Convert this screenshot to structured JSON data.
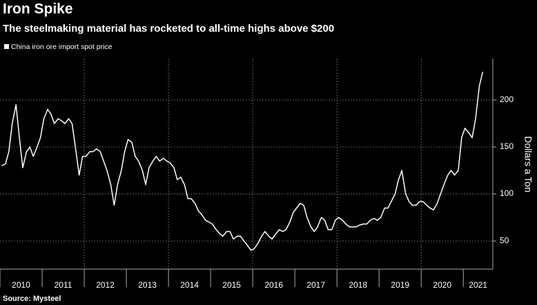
{
  "chart_data": {
    "type": "line",
    "title": "Iron Spike",
    "subtitle": "The steelmaking material has rocketed to all-time highs above $200",
    "y_label": "Dollars a Ton",
    "source": "Source: Mysteel",
    "x": [
      2010.04,
      2010.13,
      2010.21,
      2010.29,
      2010.38,
      2010.46,
      2010.54,
      2010.63,
      2010.71,
      2010.79,
      2010.88,
      2010.96,
      2011.04,
      2011.13,
      2011.21,
      2011.29,
      2011.38,
      2011.46,
      2011.54,
      2011.63,
      2011.71,
      2011.79,
      2011.88,
      2011.96,
      2012.04,
      2012.13,
      2012.21,
      2012.29,
      2012.38,
      2012.46,
      2012.54,
      2012.63,
      2012.71,
      2012.79,
      2012.88,
      2012.96,
      2013.04,
      2013.13,
      2013.21,
      2013.29,
      2013.38,
      2013.46,
      2013.54,
      2013.63,
      2013.71,
      2013.79,
      2013.88,
      2013.96,
      2014.04,
      2014.13,
      2014.21,
      2014.29,
      2014.38,
      2014.46,
      2014.54,
      2014.63,
      2014.71,
      2014.79,
      2014.88,
      2014.96,
      2015.04,
      2015.13,
      2015.21,
      2015.29,
      2015.38,
      2015.46,
      2015.54,
      2015.63,
      2015.71,
      2015.79,
      2015.88,
      2015.96,
      2016.04,
      2016.13,
      2016.21,
      2016.29,
      2016.38,
      2016.46,
      2016.54,
      2016.63,
      2016.71,
      2016.79,
      2016.88,
      2016.96,
      2017.04,
      2017.13,
      2017.21,
      2017.29,
      2017.38,
      2017.46,
      2017.54,
      2017.63,
      2017.71,
      2017.79,
      2017.88,
      2017.96,
      2018.04,
      2018.13,
      2018.21,
      2018.29,
      2018.38,
      2018.46,
      2018.54,
      2018.63,
      2018.71,
      2018.79,
      2018.88,
      2018.96,
      2019.04,
      2019.13,
      2019.21,
      2019.29,
      2019.38,
      2019.46,
      2019.54,
      2019.63,
      2019.71,
      2019.79,
      2019.88,
      2019.96,
      2020.04,
      2020.13,
      2020.21,
      2020.29,
      2020.38,
      2020.46,
      2020.54,
      2020.63,
      2020.71,
      2020.79,
      2020.88,
      2020.96,
      2021.04,
      2021.13,
      2021.21,
      2021.29,
      2021.38,
      2021.46
    ],
    "series": [
      {
        "name": "China iron ore import spot price",
        "color": "#ffffff",
        "values": [
          130,
          132,
          145,
          175,
          195,
          160,
          128,
          145,
          150,
          140,
          150,
          160,
          180,
          190,
          185,
          175,
          180,
          178,
          175,
          180,
          175,
          150,
          120,
          140,
          140,
          145,
          145,
          148,
          145,
          135,
          125,
          110,
          88,
          110,
          125,
          145,
          158,
          155,
          140,
          135,
          125,
          110,
          128,
          135,
          140,
          135,
          138,
          135,
          133,
          128,
          115,
          118,
          110,
          95,
          95,
          90,
          82,
          78,
          72,
          70,
          68,
          62,
          58,
          55,
          60,
          60,
          52,
          55,
          55,
          50,
          45,
          40,
          42,
          48,
          55,
          60,
          55,
          52,
          57,
          62,
          60,
          62,
          70,
          80,
          85,
          90,
          88,
          75,
          65,
          60,
          65,
          75,
          72,
          62,
          62,
          72,
          75,
          72,
          68,
          65,
          65,
          65,
          67,
          68,
          68,
          72,
          74,
          72,
          75,
          85,
          85,
          92,
          100,
          115,
          125,
          100,
          92,
          88,
          88,
          92,
          92,
          88,
          85,
          83,
          90,
          100,
          110,
          120,
          125,
          120,
          125,
          160,
          170,
          165,
          160,
          180,
          215,
          230
        ]
      }
    ],
    "xlim": [
      2010,
      2021.7
    ],
    "xticks": [
      {
        "value": 2010,
        "label": "2010"
      },
      {
        "value": 2011,
        "label": "2011"
      },
      {
        "value": 2012,
        "label": "2012"
      },
      {
        "value": 2013,
        "label": "2013"
      },
      {
        "value": 2014,
        "label": "2014"
      },
      {
        "value": 2015,
        "label": "2015"
      },
      {
        "value": 2016,
        "label": "2016"
      },
      {
        "value": 2017,
        "label": "2017"
      },
      {
        "value": 2018,
        "label": "2018"
      },
      {
        "value": 2019,
        "label": "2019"
      },
      {
        "value": 2020,
        "label": "2020"
      },
      {
        "value": 2021,
        "label": "2021"
      }
    ],
    "ylim": [
      20,
      244
    ],
    "yticks": [
      50,
      100,
      150,
      200
    ],
    "grid": true
  }
}
